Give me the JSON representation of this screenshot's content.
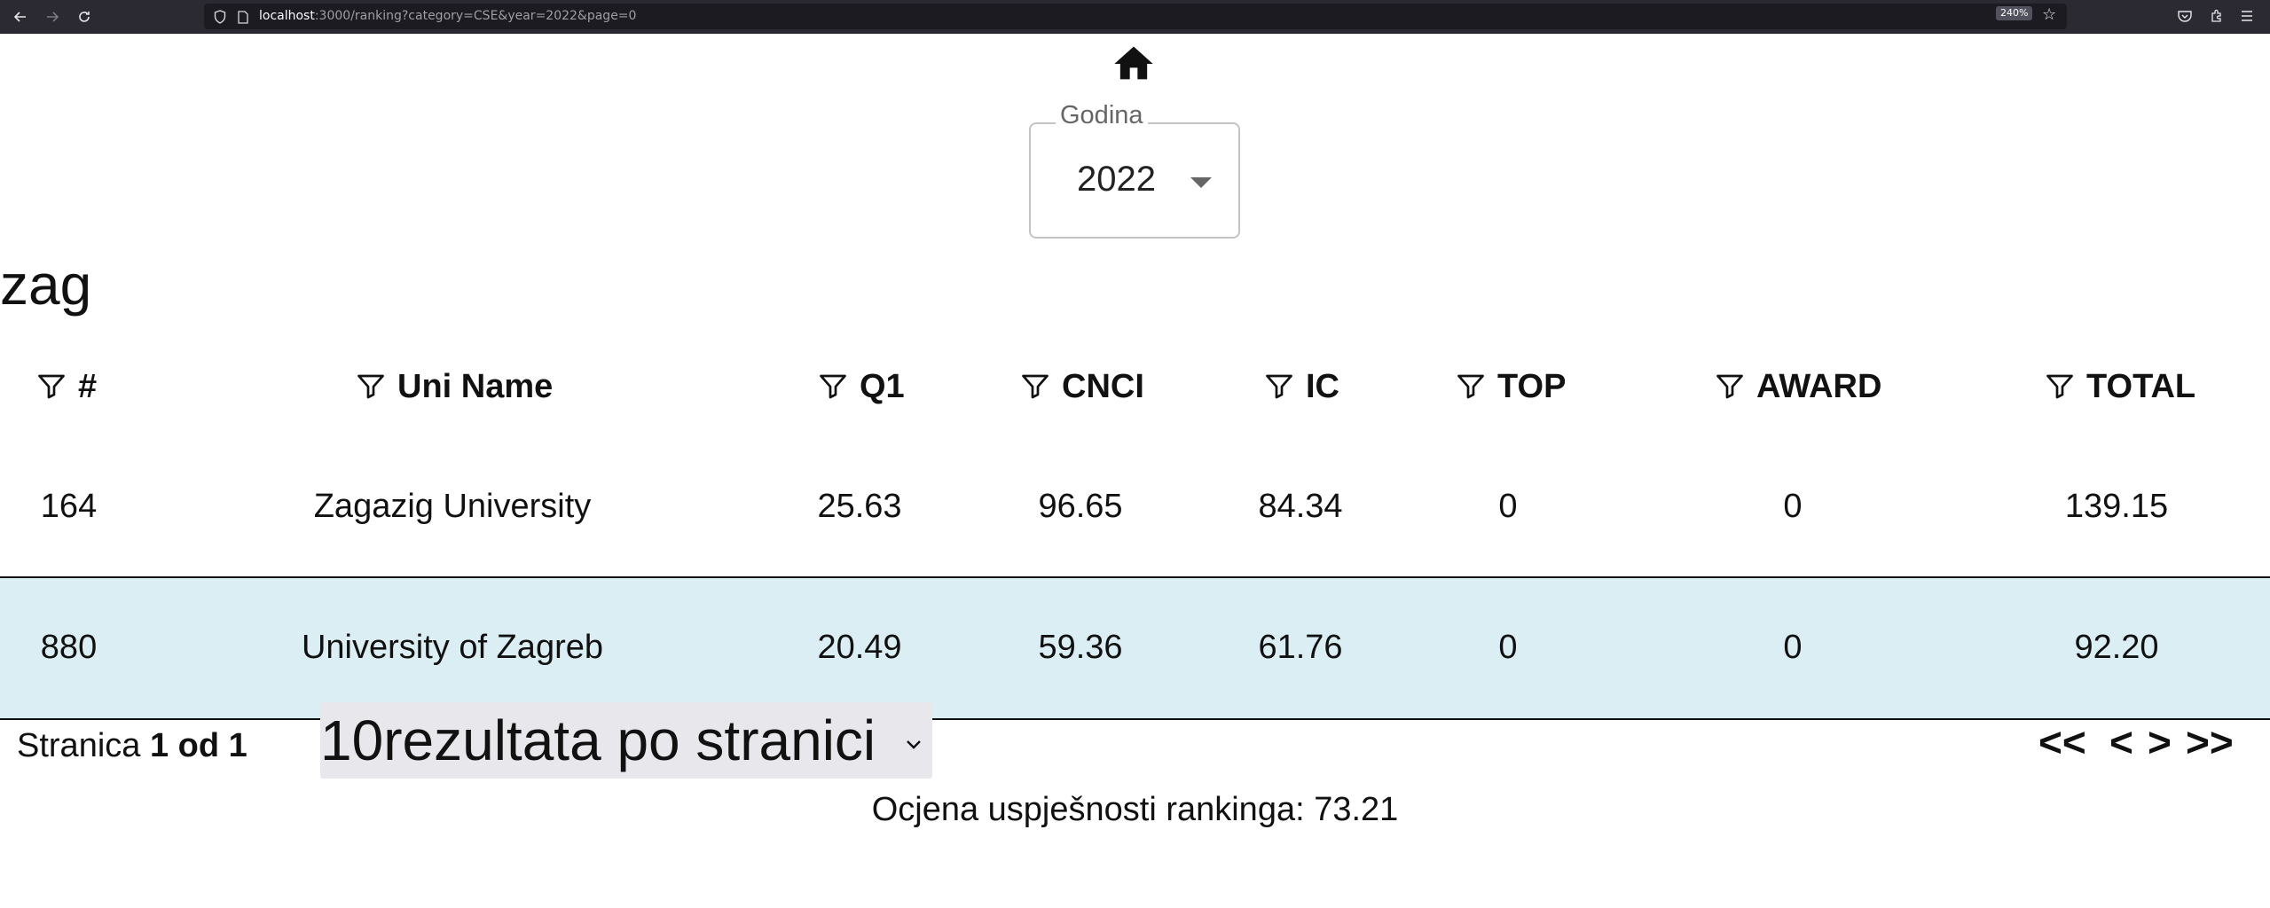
{
  "browser": {
    "url_host": "localhost",
    "url_path": ":3000/ranking?category=CSE&year=2022&page=0",
    "zoom": "240%"
  },
  "year_filter": {
    "label": "Godina",
    "value": "2022"
  },
  "search": {
    "value": "zag"
  },
  "table": {
    "columns": [
      "#",
      "Uni Name",
      "Q1",
      "CNCI",
      "IC",
      "TOP",
      "AWARD",
      "TOTAL"
    ],
    "rows": [
      {
        "rank": "164",
        "name": "Zagazig University",
        "q1": "25.63",
        "cnci": "96.65",
        "ic": "84.34",
        "top": "0",
        "award": "0",
        "total": "139.15",
        "highlighted": false
      },
      {
        "rank": "880",
        "name": "University of Zagreb",
        "q1": "20.49",
        "cnci": "59.36",
        "ic": "61.76",
        "top": "0",
        "award": "0",
        "total": "92.20",
        "highlighted": true
      }
    ]
  },
  "pagination": {
    "page_word": "Stranica",
    "page_info": "1 od 1",
    "page_size_value": "10",
    "page_size_suffix": "rezultata po stranici",
    "first_label": "<<",
    "prev_label": "<",
    "next_label": ">",
    "last_label": ">>"
  },
  "footer": {
    "score_text": "Ocjena uspješnosti rankinga: 73.21"
  },
  "colors": {
    "highlight_row": "#dbeef4",
    "browser_bar": "#2b2a33"
  }
}
